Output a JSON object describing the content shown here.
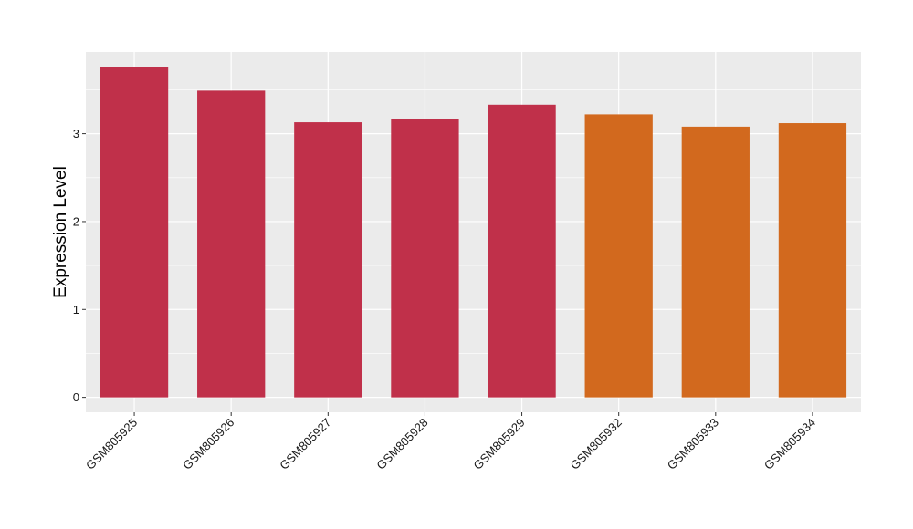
{
  "chart_data": {
    "type": "bar",
    "title": "",
    "xlabel": "",
    "ylabel": "Expression Level",
    "categories": [
      "GSM805925",
      "GSM805926",
      "GSM805927",
      "GSM805928",
      "GSM805929",
      "GSM805932",
      "GSM805933",
      "GSM805934"
    ],
    "values": [
      3.76,
      3.49,
      3.13,
      3.17,
      3.33,
      3.22,
      3.08,
      3.12
    ],
    "groups": [
      "a",
      "a",
      "a",
      "a",
      "a",
      "b",
      "b",
      "b"
    ],
    "group_colors": {
      "a": "#C0304A",
      "b": "#D2691E"
    },
    "ylim": [
      -0.17,
      3.93
    ],
    "yticks": [
      0,
      1,
      2,
      3
    ],
    "grid": true,
    "legend": "none",
    "panel_background": "#EBEBEB",
    "grid_color": "#FFFFFF"
  }
}
